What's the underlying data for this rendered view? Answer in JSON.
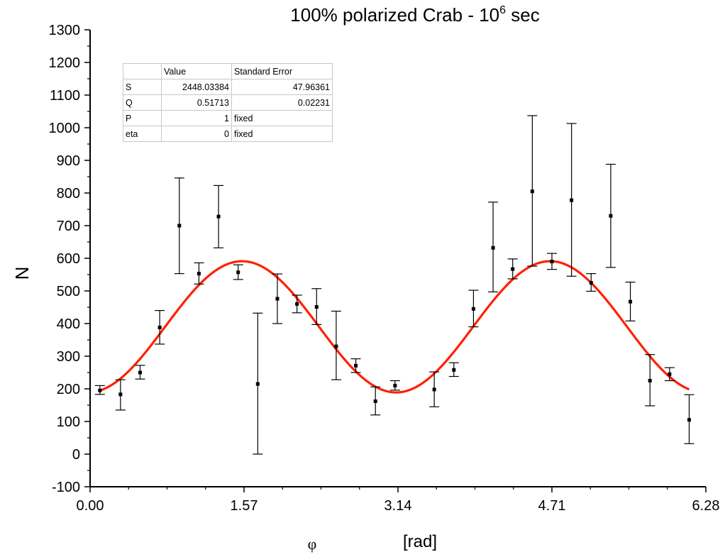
{
  "chart_data": {
    "type": "scatter",
    "title": "100% polarized Crab - 10",
    "title_superscript": "6",
    "title_suffix": " sec",
    "xlabel": "φ",
    "xlabel_unit": "[rad]",
    "ylabel": "N",
    "xlim": [
      0,
      6.28
    ],
    "ylim": [
      -100,
      1300
    ],
    "xticks": [
      "0.00",
      "1.57",
      "3.14",
      "4.71",
      "6.28"
    ],
    "yticks": [
      "-100",
      "0",
      "100",
      "200",
      "300",
      "400",
      "500",
      "600",
      "700",
      "800",
      "900",
      "1000",
      "1100",
      "1200",
      "1300"
    ],
    "grid": false,
    "series": [
      {
        "kind": "points_with_error_bars",
        "color": "#000000",
        "points": [
          {
            "x": 0.1,
            "y": 195,
            "lo": 183,
            "hi": 210
          },
          {
            "x": 0.31,
            "y": 183,
            "lo": 135,
            "hi": 228
          },
          {
            "x": 0.51,
            "y": 250,
            "lo": 230,
            "hi": 272
          },
          {
            "x": 0.71,
            "y": 388,
            "lo": 337,
            "hi": 440
          },
          {
            "x": 0.91,
            "y": 700,
            "lo": 553,
            "hi": 846
          },
          {
            "x": 1.11,
            "y": 553,
            "lo": 521,
            "hi": 586
          },
          {
            "x": 1.31,
            "y": 728,
            "lo": 632,
            "hi": 823
          },
          {
            "x": 1.51,
            "y": 557,
            "lo": 535,
            "hi": 580
          },
          {
            "x": 1.71,
            "y": 215,
            "lo": 0,
            "hi": 432
          },
          {
            "x": 1.91,
            "y": 476,
            "lo": 400,
            "hi": 552
          },
          {
            "x": 2.11,
            "y": 460,
            "lo": 433,
            "hi": 487
          },
          {
            "x": 2.31,
            "y": 451,
            "lo": 397,
            "hi": 507
          },
          {
            "x": 2.51,
            "y": 330,
            "lo": 228,
            "hi": 438
          },
          {
            "x": 2.71,
            "y": 271,
            "lo": 250,
            "hi": 292
          },
          {
            "x": 2.91,
            "y": 162,
            "lo": 120,
            "hi": 206
          },
          {
            "x": 3.11,
            "y": 210,
            "lo": 196,
            "hi": 225
          },
          {
            "x": 3.51,
            "y": 198,
            "lo": 145,
            "hi": 252
          },
          {
            "x": 3.71,
            "y": 258,
            "lo": 238,
            "hi": 280
          },
          {
            "x": 3.91,
            "y": 445,
            "lo": 390,
            "hi": 502
          },
          {
            "x": 4.11,
            "y": 632,
            "lo": 497,
            "hi": 772
          },
          {
            "x": 4.31,
            "y": 567,
            "lo": 537,
            "hi": 598
          },
          {
            "x": 4.51,
            "y": 805,
            "lo": 576,
            "hi": 1037
          },
          {
            "x": 4.71,
            "y": 590,
            "lo": 566,
            "hi": 615
          },
          {
            "x": 4.91,
            "y": 778,
            "lo": 545,
            "hi": 1013
          },
          {
            "x": 5.11,
            "y": 525,
            "lo": 499,
            "hi": 553
          },
          {
            "x": 5.31,
            "y": 730,
            "lo": 572,
            "hi": 888
          },
          {
            "x": 5.51,
            "y": 467,
            "lo": 408,
            "hi": 527
          },
          {
            "x": 5.71,
            "y": 225,
            "lo": 148,
            "hi": 305
          },
          {
            "x": 5.91,
            "y": 245,
            "lo": 225,
            "hi": 265
          },
          {
            "x": 6.11,
            "y": 105,
            "lo": 32,
            "hi": 182
          }
        ]
      },
      {
        "kind": "fit_curve",
        "color": "#ff2000",
        "model": "y = 390 + 201*cos(2*(x - 1.55))",
        "x_range": [
          0.1,
          6.11
        ]
      }
    ],
    "fit_table": {
      "headers": [
        "",
        "Value",
        "Standard Error"
      ],
      "rows": [
        [
          "S",
          "2448.03384",
          "47.96361"
        ],
        [
          "Q",
          "0.51713",
          "0.02231"
        ],
        [
          "P",
          "1",
          "fixed"
        ],
        [
          "eta",
          "0",
          "fixed"
        ]
      ]
    }
  }
}
